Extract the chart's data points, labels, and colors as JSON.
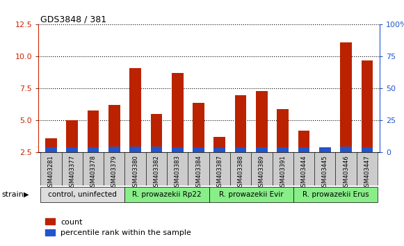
{
  "title": "GDS3848 / 381",
  "samples": [
    "GSM403281",
    "GSM403377",
    "GSM403378",
    "GSM403379",
    "GSM403380",
    "GSM403382",
    "GSM403383",
    "GSM403384",
    "GSM403387",
    "GSM403388",
    "GSM403389",
    "GSM403391",
    "GSM403444",
    "GSM403445",
    "GSM403446",
    "GSM403447"
  ],
  "count_values": [
    3.6,
    5.0,
    5.8,
    6.2,
    9.1,
    5.5,
    8.7,
    6.4,
    3.7,
    7.0,
    7.3,
    5.9,
    4.2,
    2.9,
    11.1,
    9.7
  ],
  "percentile_values": [
    0.38,
    0.42,
    0.42,
    0.45,
    0.45,
    0.45,
    0.42,
    0.4,
    0.36,
    0.4,
    0.4,
    0.42,
    0.38,
    0.36,
    0.45,
    0.42
  ],
  "count_color": "#bb2200",
  "percentile_color": "#2255cc",
  "ylim_left": [
    2.5,
    12.5
  ],
  "ylim_right": [
    0,
    100
  ],
  "yticks_left": [
    2.5,
    5.0,
    7.5,
    10.0,
    12.5
  ],
  "yticks_right": [
    0,
    25,
    50,
    75,
    100
  ],
  "left_axis_color": "#cc2200",
  "right_axis_color": "#2255cc",
  "group_spans": [
    {
      "label": "control, uninfected",
      "start": 0,
      "end": 4,
      "color": "#dddddd"
    },
    {
      "label": "R. prowazekii Rp22",
      "start": 4,
      "end": 8,
      "color": "#88ee88"
    },
    {
      "label": "R. prowazekii Evir",
      "start": 8,
      "end": 12,
      "color": "#88ee88"
    },
    {
      "label": "R. prowazekii Erus",
      "start": 12,
      "end": 16,
      "color": "#88ee88"
    }
  ],
  "strain_label": "strain",
  "legend_count": "count",
  "legend_percentile": "percentile rank within the sample",
  "bar_width": 0.55
}
